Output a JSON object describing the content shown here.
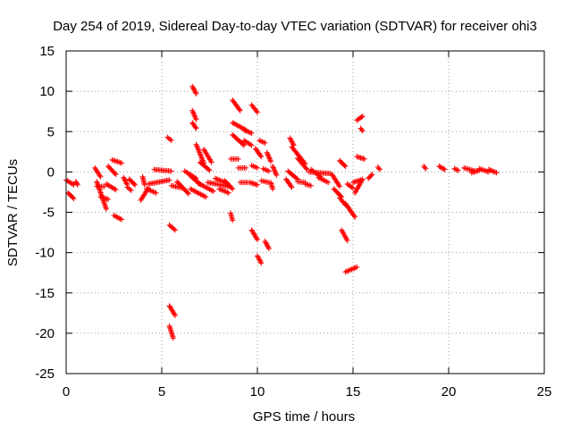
{
  "chart_data": {
    "type": "scatter",
    "title": "Day 254 of 2019, Sidereal Day-to-day VTEC variation (SDTVAR) for receiver ohi3",
    "xlabel": "GPS time / hours",
    "ylabel": "SDTVAR / TECUs",
    "xlim": [
      0,
      25
    ],
    "ylim": [
      -25,
      15
    ],
    "xticks": [
      0,
      5,
      10,
      15,
      20,
      25
    ],
    "yticks": [
      -25,
      -20,
      -15,
      -10,
      -5,
      0,
      5,
      10,
      15
    ],
    "xtick_labels": [
      "0",
      "5",
      "10",
      "15",
      "20",
      "25"
    ],
    "ytick_labels": [
      "-25",
      "-20",
      "-15",
      "-10",
      "-5",
      "0",
      "5",
      "10",
      "15"
    ],
    "grid": true,
    "marker": "+",
    "point_color": "#ff0000",
    "segments": [
      {
        "x0": 0.0,
        "y0": -1.0,
        "x1": 0.4,
        "y1": -1.6
      },
      {
        "x0": 0.1,
        "y0": -2.6,
        "x1": 0.4,
        "y1": -3.3
      },
      {
        "x0": 0.5,
        "y0": -1.2,
        "x1": 0.6,
        "y1": -1.6
      },
      {
        "x0": 1.5,
        "y0": 0.5,
        "x1": 1.8,
        "y1": -0.6
      },
      {
        "x0": 1.6,
        "y0": -1.2,
        "x1": 2.1,
        "y1": -4.6
      },
      {
        "x0": 1.6,
        "y0": -1.8,
        "x1": 2.0,
        "y1": -1.8
      },
      {
        "x0": 1.8,
        "y0": -3.1,
        "x1": 2.2,
        "y1": -3.4
      },
      {
        "x0": 2.2,
        "y0": 0.7,
        "x1": 2.6,
        "y1": -0.3
      },
      {
        "x0": 2.4,
        "y0": 1.5,
        "x1": 2.9,
        "y1": 1.1
      },
      {
        "x0": 2.1,
        "y0": -1.5,
        "x1": 2.6,
        "y1": -2.2
      },
      {
        "x0": 2.5,
        "y0": -5.4,
        "x1": 2.9,
        "y1": -5.9
      },
      {
        "x0": 3.0,
        "y0": -0.7,
        "x1": 3.2,
        "y1": -1.6
      },
      {
        "x0": 3.2,
        "y0": -1.9,
        "x1": 3.4,
        "y1": -2.3
      },
      {
        "x0": 3.3,
        "y0": -0.9,
        "x1": 3.6,
        "y1": -1.6
      },
      {
        "x0": 4.0,
        "y0": -0.6,
        "x1": 4.1,
        "y1": -1.6
      },
      {
        "x0": 3.9,
        "y0": -3.5,
        "x1": 4.3,
        "y1": -2.0
      },
      {
        "x0": 4.3,
        "y0": -1.5,
        "x1": 5.4,
        "y1": -1.0
      },
      {
        "x0": 4.2,
        "y0": -2.1,
        "x1": 4.7,
        "y1": -2.6
      },
      {
        "x0": 4.6,
        "y0": 0.3,
        "x1": 5.5,
        "y1": 0.1
      },
      {
        "x0": 5.3,
        "y0": 4.3,
        "x1": 5.5,
        "y1": 3.9
      },
      {
        "x0": 5.4,
        "y0": -6.6,
        "x1": 5.7,
        "y1": -7.2
      },
      {
        "x0": 5.4,
        "y0": -16.6,
        "x1": 5.7,
        "y1": -17.8
      },
      {
        "x0": 5.4,
        "y0": -19.1,
        "x1": 5.6,
        "y1": -20.6
      },
      {
        "x0": 5.5,
        "y0": -1.7,
        "x1": 6.1,
        "y1": -2.0
      },
      {
        "x0": 5.8,
        "y0": -1.2,
        "x1": 6.4,
        "y1": -2.7
      },
      {
        "x0": 6.2,
        "y0": 0.1,
        "x1": 6.8,
        "y1": -0.8
      },
      {
        "x0": 6.5,
        "y0": -0.5,
        "x1": 7.0,
        "y1": -1.5
      },
      {
        "x0": 6.6,
        "y0": 10.6,
        "x1": 6.8,
        "y1": 9.7
      },
      {
        "x0": 6.6,
        "y0": 7.6,
        "x1": 6.8,
        "y1": 6.5
      },
      {
        "x0": 6.6,
        "y0": 6.1,
        "x1": 6.8,
        "y1": 5.4
      },
      {
        "x0": 6.8,
        "y0": 3.4,
        "x1": 7.2,
        "y1": 1.1
      },
      {
        "x0": 6.5,
        "y0": -2.1,
        "x1": 7.3,
        "y1": -3.1
      },
      {
        "x0": 6.9,
        "y0": -1.4,
        "x1": 7.7,
        "y1": -2.4
      },
      {
        "x0": 7.0,
        "y0": 1.2,
        "x1": 7.5,
        "y1": 0.2
      },
      {
        "x0": 7.2,
        "y0": 2.8,
        "x1": 7.6,
        "y1": 1.2
      },
      {
        "x0": 7.4,
        "y0": -1.3,
        "x1": 8.5,
        "y1": -1.8
      },
      {
        "x0": 7.8,
        "y0": -0.8,
        "x1": 8.4,
        "y1": -1.4
      },
      {
        "x0": 8.0,
        "y0": -2.1,
        "x1": 8.5,
        "y1": -2.6
      },
      {
        "x0": 8.3,
        "y0": -1.1,
        "x1": 8.7,
        "y1": -2.1
      },
      {
        "x0": 8.7,
        "y0": 8.9,
        "x1": 9.1,
        "y1": 7.6
      },
      {
        "x0": 8.7,
        "y0": 6.1,
        "x1": 9.4,
        "y1": 5.2
      },
      {
        "x0": 8.7,
        "y0": 4.6,
        "x1": 9.3,
        "y1": 3.3
      },
      {
        "x0": 8.6,
        "y0": 1.6,
        "x1": 9.0,
        "y1": 1.6
      },
      {
        "x0": 8.6,
        "y0": -5.1,
        "x1": 8.7,
        "y1": -6.0
      },
      {
        "x0": 9.0,
        "y0": 0.5,
        "x1": 9.4,
        "y1": 0.5
      },
      {
        "x0": 9.1,
        "y0": -1.3,
        "x1": 9.5,
        "y1": -1.3
      },
      {
        "x0": 9.3,
        "y0": 5.2,
        "x1": 9.7,
        "y1": 4.8
      },
      {
        "x0": 9.3,
        "y0": 3.9,
        "x1": 9.7,
        "y1": 3.3
      },
      {
        "x0": 9.7,
        "y0": 8.3,
        "x1": 10.0,
        "y1": 7.4
      },
      {
        "x0": 9.7,
        "y0": 0.8,
        "x1": 10.0,
        "y1": 0.5
      },
      {
        "x0": 9.6,
        "y0": -1.3,
        "x1": 10.0,
        "y1": -1.6
      },
      {
        "x0": 9.7,
        "y0": -7.2,
        "x1": 10.0,
        "y1": -8.4
      },
      {
        "x0": 9.9,
        "y0": 2.9,
        "x1": 10.2,
        "y1": 1.9
      },
      {
        "x0": 10.0,
        "y0": -10.4,
        "x1": 10.2,
        "y1": -11.3
      },
      {
        "x0": 10.1,
        "y0": 3.9,
        "x1": 10.4,
        "y1": 3.6
      },
      {
        "x0": 10.2,
        "y0": -1.1,
        "x1": 10.6,
        "y1": -1.3
      },
      {
        "x0": 10.3,
        "y0": 0.4,
        "x1": 10.6,
        "y1": 0.1
      },
      {
        "x0": 10.4,
        "y0": -8.6,
        "x1": 10.6,
        "y1": -9.5
      },
      {
        "x0": 10.5,
        "y0": 2.4,
        "x1": 10.7,
        "y1": 1.3
      },
      {
        "x0": 10.7,
        "y0": -1.3,
        "x1": 10.8,
        "y1": -2.1
      },
      {
        "x0": 10.8,
        "y0": 0.7,
        "x1": 11.0,
        "y1": -0.4
      },
      {
        "x0": 11.5,
        "y0": -0.9,
        "x1": 11.8,
        "y1": -1.9
      },
      {
        "x0": 11.6,
        "y0": 0.1,
        "x1": 12.1,
        "y1": -0.9
      },
      {
        "x0": 11.7,
        "y0": 4.2,
        "x1": 11.9,
        "y1": 3.3
      },
      {
        "x0": 11.8,
        "y0": 3.1,
        "x1": 12.5,
        "y1": 1.0
      },
      {
        "x0": 12.1,
        "y0": 1.7,
        "x1": 12.6,
        "y1": 0.3
      },
      {
        "x0": 12.1,
        "y0": -1.2,
        "x1": 12.5,
        "y1": -1.3
      },
      {
        "x0": 12.5,
        "y0": -1.5,
        "x1": 12.8,
        "y1": -1.7
      },
      {
        "x0": 12.8,
        "y0": 0.3,
        "x1": 13.3,
        "y1": -0.6
      },
      {
        "x0": 12.7,
        "y0": 0.0,
        "x1": 13.8,
        "y1": -0.2
      },
      {
        "x0": 13.2,
        "y0": -0.7,
        "x1": 13.7,
        "y1": -1.3
      },
      {
        "x0": 13.9,
        "y0": -0.3,
        "x1": 14.3,
        "y1": -1.8
      },
      {
        "x0": 14.0,
        "y0": -2.1,
        "x1": 14.4,
        "y1": -3.1
      },
      {
        "x0": 14.3,
        "y0": -3.2,
        "x1": 14.6,
        "y1": -4.1
      },
      {
        "x0": 14.3,
        "y0": 1.4,
        "x1": 14.6,
        "y1": 0.7
      },
      {
        "x0": 14.4,
        "y0": -7.2,
        "x1": 14.7,
        "y1": -8.5
      },
      {
        "x0": 14.6,
        "y0": -3.9,
        "x1": 15.1,
        "y1": -5.6
      },
      {
        "x0": 14.6,
        "y0": -12.4,
        "x1": 15.2,
        "y1": -11.8
      },
      {
        "x0": 14.7,
        "y0": -1.5,
        "x1": 15.0,
        "y1": -2.0
      },
      {
        "x0": 15.0,
        "y0": -1.3,
        "x1": 15.4,
        "y1": -1.0
      },
      {
        "x0": 15.1,
        "y0": -2.6,
        "x1": 15.5,
        "y1": -0.9
      },
      {
        "x0": 15.2,
        "y0": 1.9,
        "x1": 15.6,
        "y1": 1.6
      },
      {
        "x0": 15.2,
        "y0": 6.4,
        "x1": 15.5,
        "y1": 6.9
      },
      {
        "x0": 15.4,
        "y0": 5.4,
        "x1": 15.5,
        "y1": 5.1
      },
      {
        "x0": 15.8,
        "y0": -0.8,
        "x1": 16.0,
        "y1": -0.3
      },
      {
        "x0": 16.3,
        "y0": 0.6,
        "x1": 16.4,
        "y1": 0.3
      },
      {
        "x0": 18.7,
        "y0": 0.7,
        "x1": 18.8,
        "y1": 0.4
      },
      {
        "x0": 19.5,
        "y0": 0.7,
        "x1": 19.8,
        "y1": 0.3
      },
      {
        "x0": 20.3,
        "y0": 0.4,
        "x1": 20.5,
        "y1": 0.2
      },
      {
        "x0": 20.8,
        "y0": 0.5,
        "x1": 21.4,
        "y1": 0.1
      },
      {
        "x0": 21.2,
        "y0": -0.1,
        "x1": 21.6,
        "y1": 0.2
      },
      {
        "x0": 21.6,
        "y0": 0.4,
        "x1": 22.1,
        "y1": 0.0
      },
      {
        "x0": 22.1,
        "y0": 0.3,
        "x1": 22.5,
        "y1": -0.1
      }
    ]
  }
}
